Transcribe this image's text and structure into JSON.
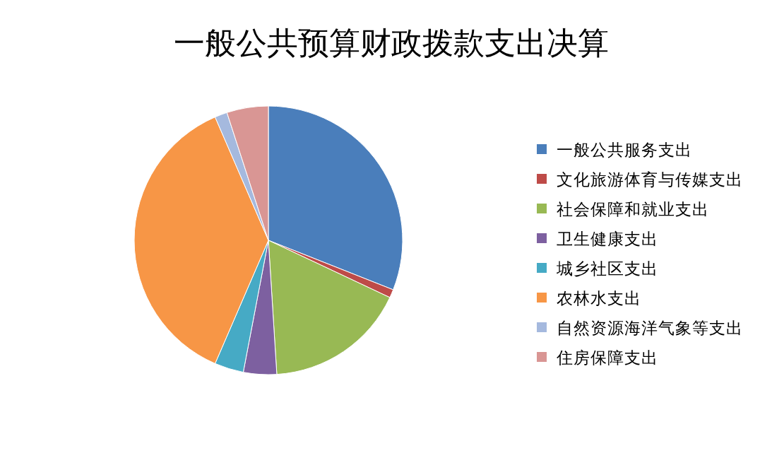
{
  "chart_data": {
    "type": "pie",
    "title": "一般公共预算财政拨款支出决算",
    "categories": [
      "一般公共服务支出",
      "文化旅游体育与传媒支出",
      "社会保障和就业支出",
      "卫生健康支出",
      "城乡社区支出",
      "农林水支出",
      "自然资源海洋气象等支出",
      "住房保障支出"
    ],
    "values": [
      31,
      1,
      17,
      4,
      3.5,
      37,
      1.5,
      5
    ],
    "colors": [
      "#4a7ebb",
      "#be4b48",
      "#98b954",
      "#7d60a0",
      "#46aac5",
      "#f79646",
      "#a5b9de",
      "#d99694"
    ],
    "legend": "right"
  }
}
